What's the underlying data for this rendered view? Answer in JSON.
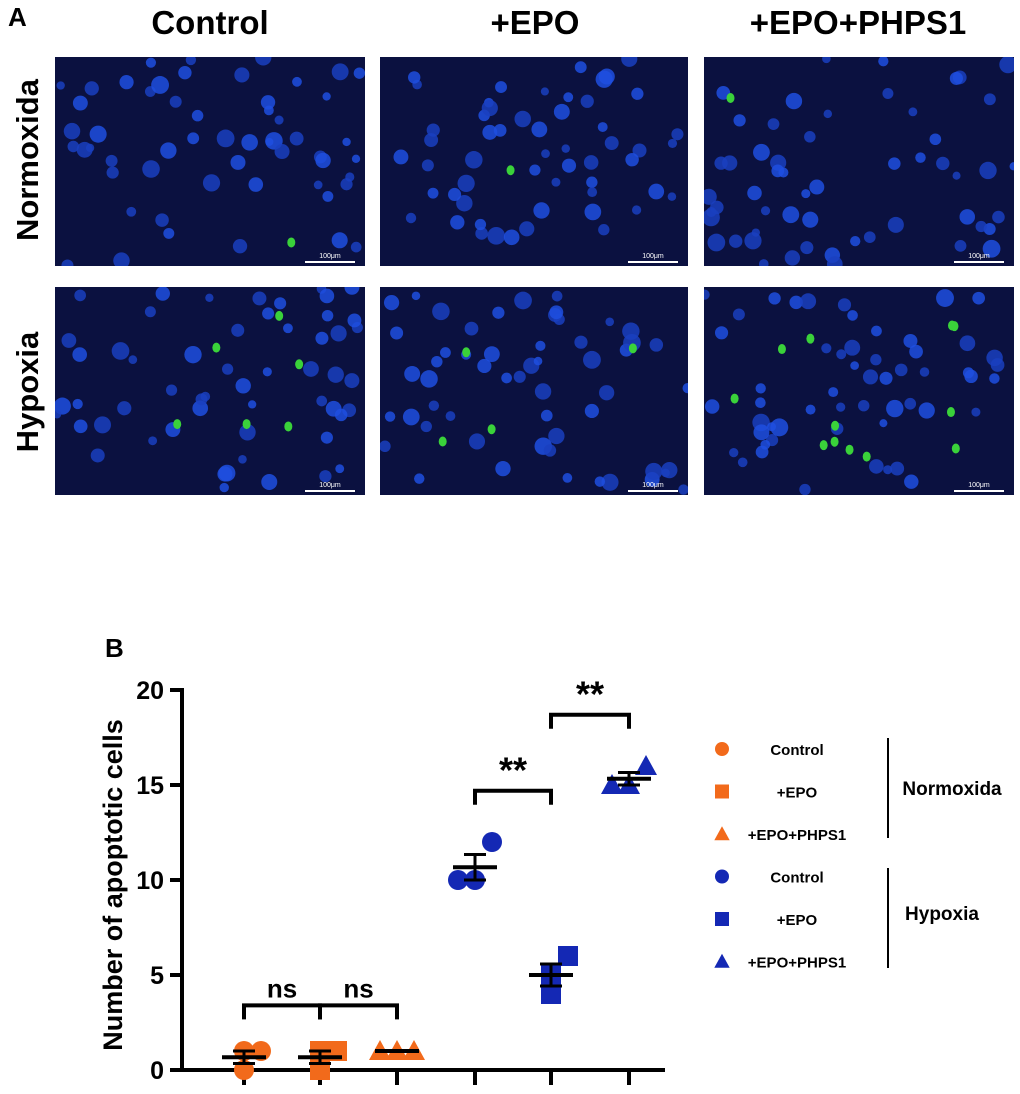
{
  "panel_a": {
    "label": "A",
    "columns": [
      "Control",
      "+EPO",
      "+EPO+PHPS1"
    ],
    "rows": [
      "Normoxida",
      "Hypoxia"
    ],
    "scale_bar": "100μm"
  },
  "panel_b": {
    "label": "B"
  },
  "chart_data": {
    "type": "scatter",
    "title": "",
    "xlabel": "",
    "ylabel": "Number of apoptotic cells",
    "ylim": [
      0,
      20
    ],
    "yticks": [
      "0",
      "5",
      "10",
      "15",
      "20"
    ],
    "groups": [
      {
        "name": "Control",
        "condition": "Normoxida",
        "color": "#f26a1b",
        "marker": "circle",
        "points": [
          0,
          1,
          1
        ],
        "mean": 0.67,
        "sem": 0.33
      },
      {
        "name": "+EPO",
        "condition": "Normoxida",
        "color": "#f26a1b",
        "marker": "square",
        "points": [
          0,
          1,
          1
        ],
        "mean": 0.67,
        "sem": 0.33
      },
      {
        "name": "+EPO+PHPS1",
        "condition": "Normoxida",
        "color": "#f26a1b",
        "marker": "triangle",
        "points": [
          1,
          1,
          1
        ],
        "mean": 1.0,
        "sem": 0.0
      },
      {
        "name": "Control",
        "condition": "Hypoxia",
        "color": "#1428b4",
        "marker": "circle",
        "points": [
          10,
          10,
          12
        ],
        "mean": 10.67,
        "sem": 0.67
      },
      {
        "name": "+EPO",
        "condition": "Hypoxia",
        "color": "#1428b4",
        "marker": "square",
        "points": [
          4,
          5,
          6
        ],
        "mean": 5.0,
        "sem": 0.58
      },
      {
        "name": "+EPO+PHPS1",
        "condition": "Hypoxia",
        "color": "#1428b4",
        "marker": "triangle",
        "points": [
          15,
          15,
          16
        ],
        "mean": 15.33,
        "sem": 0.33
      }
    ],
    "comparisons": [
      {
        "from": 0,
        "to": 1,
        "label": "ns",
        "y": 3.4
      },
      {
        "from": 1,
        "to": 2,
        "label": "ns",
        "y": 3.4
      },
      {
        "from": 3,
        "to": 4,
        "label": "**",
        "y": 14.7
      },
      {
        "from": 4,
        "to": 5,
        "label": "**",
        "y": 18.7
      }
    ],
    "legend": {
      "placement": "right",
      "group_labels": [
        "Normoxida",
        "Hypoxia"
      ]
    }
  }
}
